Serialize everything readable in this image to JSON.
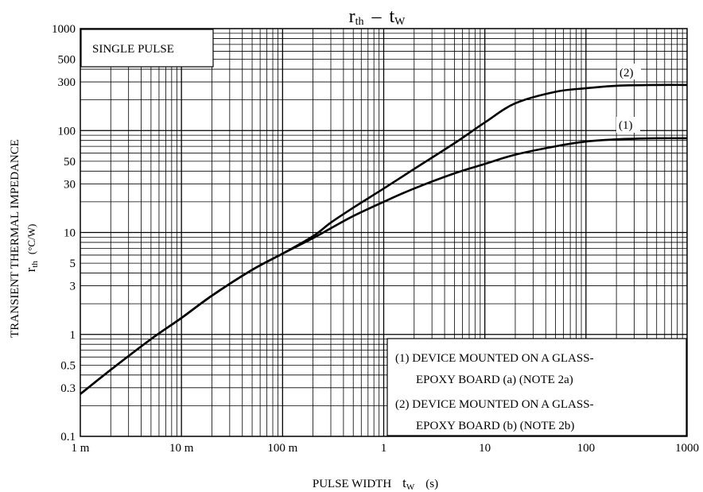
{
  "chart_data": {
    "type": "line",
    "title": {
      "main": "r",
      "main_sub": "th",
      "dash": "–",
      "var": "t",
      "var_sub": "W"
    },
    "xlabel": {
      "text": "PULSE WIDTH",
      "var": "t",
      "var_sub": "W",
      "unit": "(s)"
    },
    "ylabel": {
      "text": "TRANSIENT THERMAL IMPEDANCE",
      "var": "r",
      "var_sub": "th",
      "unit": "(°C/W)"
    },
    "xscale": "log",
    "yscale": "log",
    "xlim": [
      0.001,
      1000
    ],
    "ylim": [
      0.1,
      1000
    ],
    "grid": true,
    "x_ticks": [
      {
        "value": 0.001,
        "label": "1 m"
      },
      {
        "value": 0.01,
        "label": "10 m"
      },
      {
        "value": 0.1,
        "label": "100 m"
      },
      {
        "value": 1,
        "label": "1"
      },
      {
        "value": 10,
        "label": "10"
      },
      {
        "value": 100,
        "label": "100"
      },
      {
        "value": 1000,
        "label": "1000"
      }
    ],
    "y_ticks": [
      {
        "value": 0.1,
        "label": "0.1"
      },
      {
        "value": 0.3,
        "label": "0.3"
      },
      {
        "value": 0.5,
        "label": "0.5"
      },
      {
        "value": 1,
        "label": "1"
      },
      {
        "value": 3,
        "label": "3"
      },
      {
        "value": 5,
        "label": "5"
      },
      {
        "value": 10,
        "label": "10"
      },
      {
        "value": 30,
        "label": "30"
      },
      {
        "value": 50,
        "label": "50"
      },
      {
        "value": 100,
        "label": "100"
      },
      {
        "value": 300,
        "label": "300"
      },
      {
        "value": 500,
        "label": "500"
      },
      {
        "value": 1000,
        "label": "1000"
      }
    ],
    "annotation": "SINGLE PULSE",
    "series": [
      {
        "name": "(1)",
        "x": [
          0.001,
          0.002,
          0.005,
          0.01,
          0.02,
          0.05,
          0.1,
          0.2,
          0.3,
          0.5,
          1,
          2,
          5,
          10,
          20,
          50,
          100,
          200,
          500,
          1000
        ],
        "values": [
          0.26,
          0.45,
          0.9,
          1.45,
          2.4,
          4.3,
          6.2,
          8.8,
          11,
          14.5,
          20,
          27,
          38,
          47,
          58,
          70,
          78,
          82,
          84,
          84
        ]
      },
      {
        "name": "(2)",
        "x": [
          0.001,
          0.002,
          0.005,
          0.01,
          0.02,
          0.05,
          0.1,
          0.2,
          0.3,
          0.5,
          1,
          2,
          5,
          10,
          20,
          50,
          100,
          200,
          500,
          1000
        ],
        "values": [
          0.26,
          0.45,
          0.9,
          1.45,
          2.4,
          4.3,
          6.2,
          9.2,
          12.5,
          17.5,
          27,
          42,
          75,
          120,
          185,
          240,
          260,
          275,
          280,
          280
        ]
      }
    ],
    "legend_lines": [
      "(1) DEVICE MOUNTED ON A GLASS-",
      "EPOXY BOARD (a) (NOTE 2a)",
      "(2) DEVICE MOUNTED ON A GLASS-",
      "EPOXY BOARD (b) (NOTE 2b)"
    ],
    "colors": {
      "line": "#000000",
      "grid": "#000000",
      "background": "#ffffff"
    }
  }
}
